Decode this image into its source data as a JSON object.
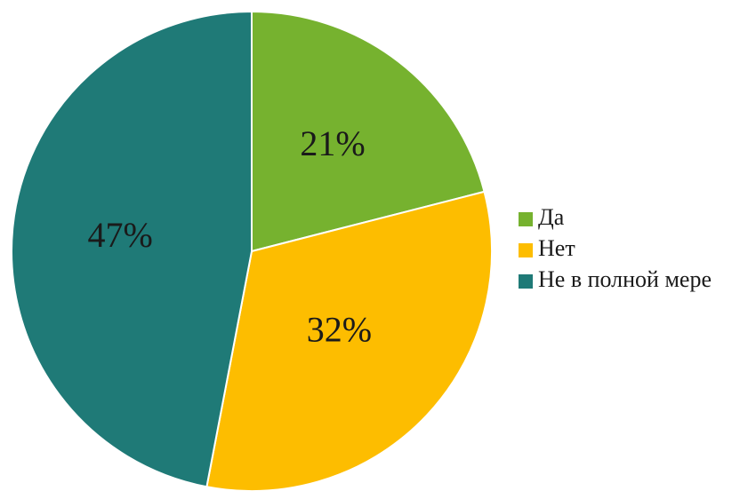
{
  "chart_data": {
    "type": "pie",
    "categories": [
      "Да",
      "Нет",
      "Не в полной мере"
    ],
    "values": [
      21,
      32,
      47
    ],
    "labels": [
      "21%",
      "32%",
      "47%"
    ],
    "colors": [
      "#76b22f",
      "#fdbd00",
      "#1f7a77"
    ],
    "legend": {
      "placement": "right",
      "entries": [
        "Да",
        "Нет",
        "Не в полной мере"
      ]
    },
    "start_angle": "12 o'clock",
    "direction": "clockwise"
  }
}
